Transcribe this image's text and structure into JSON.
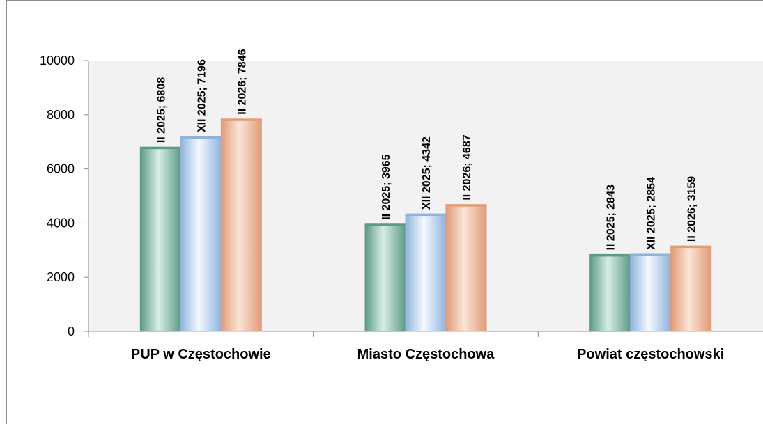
{
  "header": {
    "text": ""
  },
  "chart_data": {
    "type": "bar",
    "title": "",
    "xlabel": "",
    "ylabel": "",
    "ylim": [
      0,
      10000
    ],
    "yticks": [
      0,
      2000,
      4000,
      6000,
      8000,
      10000
    ],
    "grid": false,
    "legend": "none",
    "categories": [
      "PUP w Częstochowie",
      "Miasto Częstochowa",
      "Powiat częstochowski"
    ],
    "series": [
      {
        "name": "II 2025",
        "values": [
          6808,
          3965,
          2843
        ],
        "color": "#5e9a86",
        "shine": "#d6eee4"
      },
      {
        "name": "XII 2025",
        "values": [
          7196,
          4342,
          2854
        ],
        "color": "#8fb4dc",
        "shine": "#f4f9ff"
      },
      {
        "name": "II 2026",
        "values": [
          7846,
          4687,
          3159
        ],
        "color": "#e09b78",
        "shine": "#fbe4d6"
      }
    ],
    "data_labels": [
      [
        "II 2025; 6808",
        "XII 2025; 7196",
        "II 2026; 7846"
      ],
      [
        "II 2025; 3965",
        "XII 2025; 4342",
        "II 2026; 4687"
      ],
      [
        "II 2025; 2843",
        "XII 2025; 2854",
        "II 2026; 3159"
      ]
    ],
    "plot_background": "#f2f2f2"
  }
}
